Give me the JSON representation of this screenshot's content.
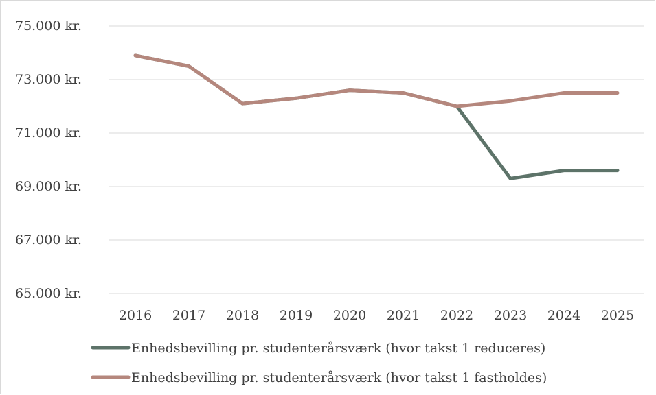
{
  "chart_data": {
    "type": "line",
    "title": "",
    "xlabel": "",
    "ylabel": "",
    "x": [
      "2016",
      "2017",
      "2018",
      "2019",
      "2020",
      "2021",
      "2022",
      "2023",
      "2024",
      "2025"
    ],
    "ylim": [
      65000,
      75000
    ],
    "y_ticks": [
      {
        "value": 65000,
        "label": "65.000 kr."
      },
      {
        "value": 67000,
        "label": "67.000 kr."
      },
      {
        "value": 69000,
        "label": "69.000 kr."
      },
      {
        "value": 71000,
        "label": "71.000 kr."
      },
      {
        "value": 73000,
        "label": "73.000 kr."
      },
      {
        "value": 75000,
        "label": "75.000 kr."
      }
    ],
    "grid": true,
    "legend_position": "bottom",
    "series": [
      {
        "name": "Enhedsbevilling pr. studenterårsværk (hvor takst 1 reduceres)",
        "color": "#5d7369",
        "values": [
          73900,
          73500,
          72100,
          72300,
          72600,
          72500,
          72000,
          69300,
          69600,
          69600
        ]
      },
      {
        "name": "Enhedsbevilling pr. studenterårsværk (hvor takst 1 fastholdes)",
        "color": "#b5877d",
        "values": [
          73900,
          73500,
          72100,
          72300,
          72600,
          72500,
          72000,
          72200,
          72500,
          72500
        ]
      }
    ]
  }
}
